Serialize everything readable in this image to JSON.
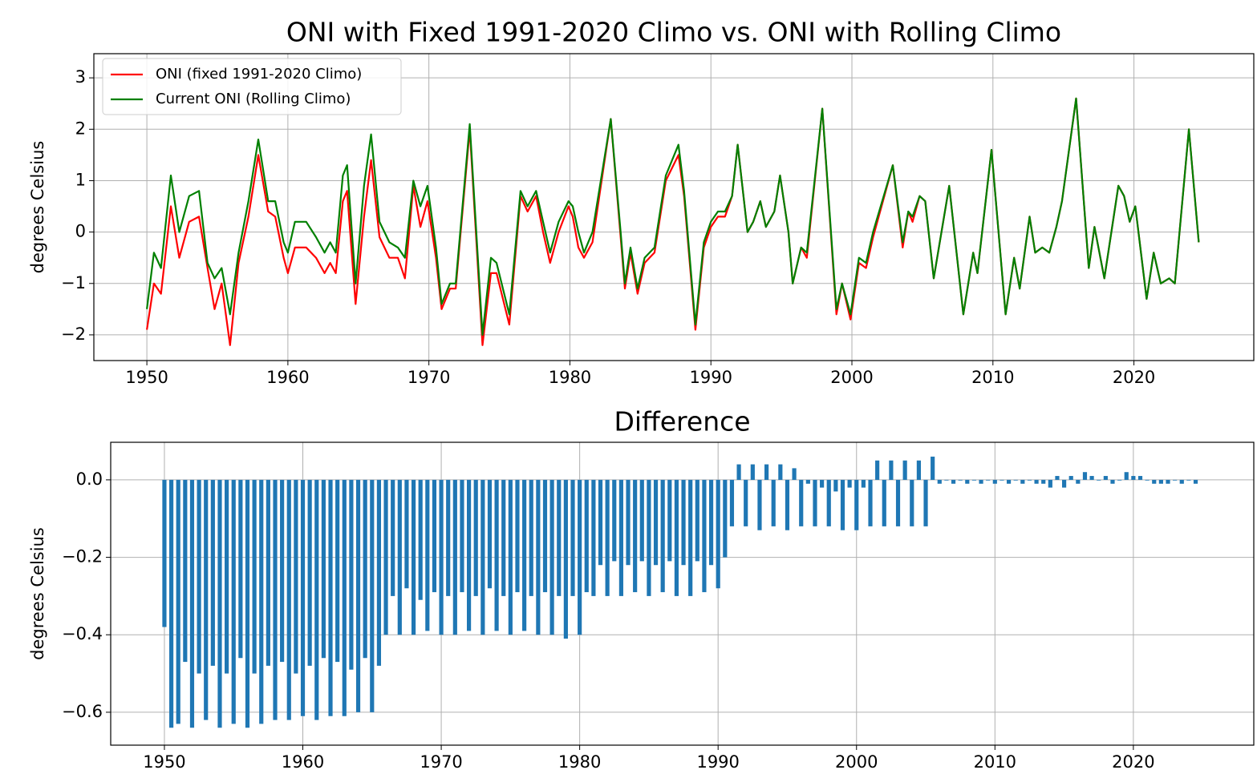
{
  "chart_data": [
    {
      "type": "line",
      "title": "ONI with Fixed 1991-2020 Climo vs. ONI with Rolling Climo",
      "ylabel": "degrees Celsius",
      "x": [
        1950.0,
        1950.5,
        1951.0,
        1951.7,
        1952.3,
        1953.0,
        1953.7,
        1954.3,
        1954.8,
        1955.3,
        1955.9,
        1956.5,
        1957.2,
        1957.9,
        1958.6,
        1959.1,
        1959.7,
        1960.0,
        1960.5,
        1961.3,
        1962.0,
        1962.6,
        1963.0,
        1963.4,
        1963.9,
        1964.2,
        1964.8,
        1965.4,
        1965.9,
        1966.5,
        1967.2,
        1967.8,
        1968.3,
        1968.9,
        1969.4,
        1969.9,
        1970.5,
        1970.9,
        1971.5,
        1971.9,
        1972.9,
        1973.8,
        1974.4,
        1974.8,
        1975.7,
        1976.5,
        1977.0,
        1977.6,
        1978.1,
        1978.6,
        1979.2,
        1979.9,
        1980.2,
        1980.6,
        1981.0,
        1981.6,
        1982.9,
        1983.6,
        1983.9,
        1984.3,
        1984.8,
        1985.3,
        1986.0,
        1986.8,
        1987.7,
        1988.1,
        1988.9,
        1989.5,
        1990.0,
        1990.5,
        1991.0,
        1991.5,
        1991.9,
        1992.6,
        1993.0,
        1993.5,
        1993.9,
        1994.5,
        1994.9,
        1995.5,
        1995.8,
        1996.4,
        1996.8,
        1997.9,
        1998.9,
        1999.3,
        1999.9,
        2000.5,
        2001.0,
        2001.5,
        2002.9,
        2003.6,
        2004.0,
        2004.3,
        2004.8,
        2005.2,
        2005.8,
        2006.9,
        2007.9,
        2008.6,
        2008.9,
        2009.9,
        2010.9,
        2011.5,
        2011.9,
        2012.6,
        2013.0,
        2013.5,
        2014.0,
        2014.5,
        2014.9,
        2015.9,
        2016.8,
        2017.2,
        2017.9,
        2018.9,
        2019.3,
        2019.7,
        2020.1,
        2020.9,
        2021.4,
        2021.9,
        2022.5,
        2022.9,
        2023.9,
        2024.6
      ],
      "series": [
        {
          "name": "ONI (fixed 1991-2020 Climo)",
          "color": "#ff0000",
          "values": [
            -1.9,
            -1.0,
            -1.2,
            0.5,
            -0.5,
            0.2,
            0.3,
            -0.7,
            -1.5,
            -1.0,
            -2.2,
            -0.6,
            0.3,
            1.5,
            0.4,
            0.3,
            -0.5,
            -0.8,
            -0.3,
            -0.3,
            -0.5,
            -0.8,
            -0.6,
            -0.8,
            0.6,
            0.8,
            -1.4,
            0.3,
            1.4,
            -0.1,
            -0.5,
            -0.5,
            -0.9,
            0.9,
            0.1,
            0.6,
            -0.5,
            -1.5,
            -1.1,
            -1.1,
            2.0,
            -2.2,
            -0.8,
            -0.8,
            -1.8,
            0.7,
            0.4,
            0.7,
            0.0,
            -0.6,
            0.0,
            0.5,
            0.3,
            -0.3,
            -0.5,
            -0.2,
            2.2,
            -0.1,
            -1.1,
            -0.4,
            -1.2,
            -0.6,
            -0.4,
            1.0,
            1.5,
            0.7,
            -1.9,
            -0.3,
            0.1,
            0.3,
            0.3,
            0.7,
            1.7,
            0.0,
            0.2,
            0.6,
            0.1,
            0.4,
            1.1,
            0.0,
            -1.0,
            -0.3,
            -0.5,
            2.4,
            -1.6,
            -1.0,
            -1.7,
            -0.6,
            -0.7,
            -0.1,
            1.3,
            -0.3,
            0.4,
            0.2,
            0.7,
            0.6,
            -0.9,
            0.9,
            -1.6,
            -0.4,
            -0.8,
            1.6,
            -1.6,
            -0.5,
            -1.1,
            0.3,
            -0.4,
            -0.3,
            -0.4,
            0.1,
            0.6,
            2.6,
            -0.7,
            0.1,
            -0.9,
            0.9,
            0.7,
            0.2,
            0.5,
            -1.3,
            -0.4,
            -1.0,
            -0.9,
            -1.0,
            2.0,
            -0.2
          ]
        },
        {
          "name": "Current ONI (Rolling Climo)",
          "color": "#008000",
          "values": [
            -1.5,
            -0.4,
            -0.7,
            1.1,
            0.0,
            0.7,
            0.8,
            -0.6,
            -0.9,
            -0.7,
            -1.6,
            -0.4,
            0.6,
            1.8,
            0.6,
            0.6,
            -0.2,
            -0.4,
            0.2,
            0.2,
            -0.1,
            -0.4,
            -0.2,
            -0.4,
            1.1,
            1.3,
            -1.0,
            0.9,
            1.9,
            0.2,
            -0.2,
            -0.3,
            -0.5,
            1.0,
            0.5,
            0.9,
            -0.3,
            -1.4,
            -1.0,
            -1.0,
            2.1,
            -2.0,
            -0.5,
            -0.6,
            -1.6,
            0.8,
            0.5,
            0.8,
            0.2,
            -0.4,
            0.2,
            0.6,
            0.5,
            0.0,
            -0.4,
            0.0,
            2.2,
            0.0,
            -1.0,
            -0.3,
            -1.1,
            -0.5,
            -0.3,
            1.1,
            1.7,
            0.8,
            -1.8,
            -0.2,
            0.2,
            0.4,
            0.4,
            0.7,
            1.7,
            0.0,
            0.2,
            0.6,
            0.1,
            0.4,
            1.1,
            0.0,
            -1.0,
            -0.3,
            -0.4,
            2.4,
            -1.5,
            -1.0,
            -1.6,
            -0.5,
            -0.6,
            0.0,
            1.3,
            -0.2,
            0.4,
            0.3,
            0.7,
            0.6,
            -0.9,
            0.9,
            -1.6,
            -0.4,
            -0.8,
            1.6,
            -1.6,
            -0.5,
            -1.1,
            0.3,
            -0.4,
            -0.3,
            -0.4,
            0.1,
            0.6,
            2.6,
            -0.7,
            0.1,
            -0.9,
            0.9,
            0.7,
            0.2,
            0.5,
            -1.3,
            -0.4,
            -1.0,
            -0.9,
            -1.0,
            2.0,
            -0.2
          ]
        }
      ],
      "xlim": [
        1946.24,
        2028.5
      ],
      "ylim": [
        -2.5,
        3.47
      ],
      "xticks": [
        1950,
        1960,
        1970,
        1980,
        1990,
        2000,
        2010,
        2020
      ],
      "yticks": [
        {
          "value": -2,
          "label": "−2"
        },
        {
          "value": -1,
          "label": "−1"
        },
        0,
        1,
        2,
        3
      ],
      "grid": true,
      "legend": "upper left"
    },
    {
      "type": "bar",
      "title": "Difference",
      "ylabel": "degrees Celsius",
      "color": "#1f77b4",
      "x": [
        1950.0,
        1950.5,
        1951.0,
        1951.5,
        1952.0,
        1952.5,
        1953.0,
        1953.5,
        1954.0,
        1954.5,
        1955.0,
        1955.5,
        1956.0,
        1956.5,
        1957.0,
        1957.5,
        1958.0,
        1958.5,
        1959.0,
        1959.5,
        1960.0,
        1960.5,
        1961.0,
        1961.5,
        1962.0,
        1962.5,
        1963.0,
        1963.5,
        1964.0,
        1964.5,
        1965.0,
        1965.5,
        1966.0,
        1966.5,
        1967.0,
        1967.5,
        1968.0,
        1968.5,
        1969.0,
        1969.5,
        1970.0,
        1970.5,
        1971.0,
        1971.5,
        1972.0,
        1972.5,
        1973.0,
        1973.5,
        1974.0,
        1974.5,
        1975.0,
        1975.5,
        1976.0,
        1976.5,
        1977.0,
        1977.5,
        1978.0,
        1978.5,
        1979.0,
        1979.5,
        1980.0,
        1980.5,
        1981.0,
        1981.5,
        1982.0,
        1982.5,
        1983.0,
        1983.5,
        1984.0,
        1984.5,
        1985.0,
        1985.5,
        1986.0,
        1986.5,
        1987.0,
        1987.5,
        1988.0,
        1988.5,
        1989.0,
        1989.5,
        1990.0,
        1990.5,
        1991.0,
        1991.5,
        1992.0,
        1992.5,
        1993.0,
        1993.5,
        1994.0,
        1994.5,
        1995.0,
        1995.5,
        1996.0,
        1996.5,
        1997.0,
        1997.5,
        1998.0,
        1998.5,
        1999.0,
        1999.5,
        2000.0,
        2000.5,
        2001.0,
        2001.5,
        2002.0,
        2002.5,
        2003.0,
        2003.5,
        2004.0,
        2004.5,
        2005.0,
        2005.5,
        2006.0,
        2006.5,
        2007.0,
        2007.5,
        2008.0,
        2008.5,
        2009.0,
        2009.5,
        2010.0,
        2010.5,
        2011.0,
        2011.5,
        2012.0,
        2012.5,
        2013.0,
        2013.5,
        2014.0,
        2014.5,
        2015.0,
        2015.5,
        2016.0,
        2016.5,
        2017.0,
        2017.5,
        2018.0,
        2018.5,
        2019.0,
        2019.5,
        2020.0,
        2020.5,
        2021.0,
        2021.5,
        2022.0,
        2022.5,
        2023.0,
        2023.5,
        2024.0,
        2024.5
      ],
      "values": [
        -0.38,
        -0.64,
        -0.63,
        -0.47,
        -0.64,
        -0.5,
        -0.62,
        -0.48,
        -0.64,
        -0.5,
        -0.63,
        -0.46,
        -0.64,
        -0.5,
        -0.63,
        -0.48,
        -0.62,
        -0.47,
        -0.62,
        -0.5,
        -0.61,
        -0.48,
        -0.62,
        -0.46,
        -0.61,
        -0.47,
        -0.61,
        -0.49,
        -0.6,
        -0.46,
        -0.6,
        -0.48,
        -0.4,
        -0.3,
        -0.4,
        -0.28,
        -0.4,
        -0.31,
        -0.39,
        -0.29,
        -0.4,
        -0.3,
        -0.4,
        -0.29,
        -0.39,
        -0.3,
        -0.4,
        -0.28,
        -0.39,
        -0.3,
        -0.4,
        -0.29,
        -0.39,
        -0.3,
        -0.4,
        -0.29,
        -0.4,
        -0.3,
        -0.41,
        -0.3,
        -0.4,
        -0.29,
        -0.3,
        -0.22,
        -0.3,
        -0.21,
        -0.3,
        -0.22,
        -0.29,
        -0.21,
        -0.3,
        -0.22,
        -0.29,
        -0.21,
        -0.3,
        -0.22,
        -0.3,
        -0.21,
        -0.29,
        -0.22,
        -0.28,
        -0.2,
        -0.12,
        0.04,
        -0.12,
        0.04,
        -0.13,
        0.04,
        -0.12,
        0.04,
        -0.13,
        0.03,
        -0.12,
        -0.01,
        -0.12,
        -0.02,
        -0.12,
        -0.03,
        -0.13,
        -0.02,
        -0.13,
        -0.02,
        -0.12,
        0.05,
        -0.12,
        0.05,
        -0.12,
        0.05,
        -0.12,
        0.05,
        -0.12,
        0.06,
        -0.01,
        0.0,
        -0.01,
        0.0,
        -0.01,
        0.0,
        -0.01,
        0.0,
        -0.01,
        0.0,
        -0.01,
        0.0,
        -0.01,
        0.0,
        -0.01,
        -0.01,
        -0.02,
        0.01,
        -0.02,
        0.01,
        -0.01,
        0.02,
        0.01,
        0.0,
        0.01,
        -0.01,
        0.0,
        0.02,
        0.01,
        0.01,
        0.0,
        -0.01,
        -0.01,
        -0.01,
        0.0,
        -0.01,
        0.0,
        -0.01
      ],
      "xlim": [
        1946.12,
        2028.7
      ],
      "ylim": [
        -0.685,
        0.097
      ],
      "xticks": [
        1950,
        1960,
        1970,
        1980,
        1990,
        2000,
        2010,
        2020
      ],
      "yticks": [
        {
          "value": -0.6,
          "label": "−0.6"
        },
        {
          "value": -0.4,
          "label": "−0.4"
        },
        {
          "value": -0.2,
          "label": "−0.2"
        },
        {
          "value": 0,
          "label": "0.0"
        }
      ],
      "grid": true
    }
  ]
}
